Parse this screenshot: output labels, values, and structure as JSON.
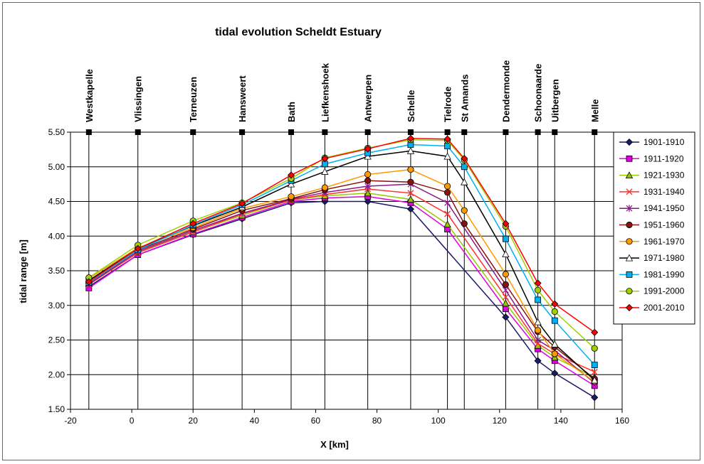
{
  "chart_data": {
    "type": "line",
    "title": "tidal evolution Scheldt Estuary",
    "xlabel": "X [km]",
    "ylabel": "tidal range [m]",
    "xlim": [
      -20,
      160
    ],
    "ylim": [
      1.5,
      5.5
    ],
    "xticks": [
      -20,
      0,
      20,
      40,
      60,
      80,
      100,
      120,
      140,
      160
    ],
    "yticks": [
      "1.50",
      "2.00",
      "2.50",
      "3.00",
      "3.50",
      "4.00",
      "4.50",
      "5.00",
      "5.50"
    ],
    "grid": true,
    "legend_position": "right",
    "x": [
      -14,
      2,
      20,
      36,
      52,
      63,
      77,
      91,
      103,
      108.5,
      122,
      132.5,
      138,
      151
    ],
    "stations": [
      {
        "name": "Westkapelle",
        "x": -14
      },
      {
        "name": "Vlissingen",
        "x": 2
      },
      {
        "name": "Terneuzen",
        "x": 20
      },
      {
        "name": "Hansweert",
        "x": 36
      },
      {
        "name": "Bath",
        "x": 52
      },
      {
        "name": "Liefkenshoek",
        "x": 63
      },
      {
        "name": "Antwerpen",
        "x": 77
      },
      {
        "name": "Schelle",
        "x": 91
      },
      {
        "name": "Tielrode",
        "x": 103
      },
      {
        "name": "St Amands",
        "x": 108.5
      },
      {
        "name": "Dendermonde",
        "x": 122
      },
      {
        "name": "Schoonaarde",
        "x": 132.5
      },
      {
        "name": "Uitbergen",
        "x": 138
      },
      {
        "name": "Melle",
        "x": 151
      }
    ],
    "series": [
      {
        "name": "1901-1910",
        "color": "#1a1a6e",
        "marker": "diamond",
        "values": [
          3.27,
          3.73,
          4.02,
          4.25,
          4.48,
          4.5,
          4.5,
          4.39,
          null,
          null,
          2.83,
          2.2,
          2.02,
          1.67
        ]
      },
      {
        "name": "1911-1920",
        "color": "#e100e1",
        "marker": "square",
        "values": [
          3.25,
          3.73,
          4.03,
          4.27,
          4.5,
          4.55,
          4.57,
          4.48,
          4.1,
          null,
          2.95,
          2.37,
          2.2,
          1.84
        ]
      },
      {
        "name": "1921-1930",
        "color": "#9ac800",
        "marker": "triangle",
        "values": [
          3.32,
          3.77,
          4.06,
          4.3,
          4.52,
          4.58,
          4.62,
          4.53,
          4.17,
          null,
          3.03,
          2.42,
          2.25,
          1.96
        ]
      },
      {
        "name": "1931-1940",
        "color": "#ff3030",
        "marker": "x",
        "values": [
          3.3,
          3.76,
          4.06,
          4.32,
          4.52,
          4.6,
          4.68,
          4.62,
          4.32,
          null,
          3.12,
          2.45,
          2.3,
          2.04
        ]
      },
      {
        "name": "1941-1950",
        "color": "#8a1a8a",
        "marker": "star",
        "values": [
          3.31,
          3.78,
          4.08,
          4.33,
          4.53,
          4.63,
          4.72,
          4.75,
          4.48,
          null,
          3.22,
          2.5,
          2.35,
          1.88
        ]
      },
      {
        "name": "1951-1960",
        "color": "#8b1010",
        "marker": "circle",
        "values": [
          3.34,
          3.8,
          4.1,
          4.37,
          4.54,
          4.67,
          4.8,
          4.78,
          4.63,
          4.18,
          3.3,
          2.62,
          2.4,
          1.94
        ]
      },
      {
        "name": "1961-1970",
        "color": "#ff9900",
        "marker": "circle",
        "values": [
          3.39,
          3.83,
          4.12,
          4.4,
          4.57,
          4.7,
          4.89,
          4.96,
          4.72,
          4.37,
          3.45,
          2.64,
          2.3,
          1.9
        ]
      },
      {
        "name": "1971-1980",
        "color": "#000000",
        "marker": "triangle",
        "values": [
          3.36,
          3.82,
          4.15,
          4.42,
          4.75,
          4.93,
          5.15,
          5.23,
          5.15,
          4.78,
          3.74,
          2.76,
          2.44,
          1.92
        ]
      },
      {
        "name": "1981-1990",
        "color": "#00b0f0",
        "marker": "square",
        "values": [
          3.33,
          3.8,
          4.16,
          4.45,
          4.8,
          5.04,
          5.2,
          5.32,
          5.3,
          5.0,
          3.96,
          3.08,
          2.78,
          2.14
        ]
      },
      {
        "name": "1991-2000",
        "color": "#a0d000",
        "marker": "circle",
        "values": [
          3.4,
          3.87,
          4.22,
          4.48,
          4.83,
          5.13,
          5.27,
          5.39,
          5.38,
          5.1,
          4.14,
          3.22,
          2.91,
          2.38
        ]
      },
      {
        "name": "2001-2010",
        "color": "#ff0000",
        "marker": "diamond",
        "values": [
          3.34,
          3.82,
          4.18,
          4.47,
          4.88,
          5.12,
          5.26,
          5.41,
          5.4,
          5.12,
          4.18,
          3.32,
          3.02,
          2.61
        ]
      }
    ]
  }
}
